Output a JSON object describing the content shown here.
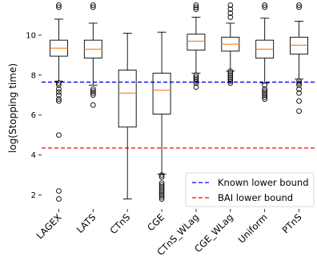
{
  "chart_data": {
    "type": "boxplot",
    "ylabel": "log(Stopping time)",
    "ylim": [
      1.3,
      11.6
    ],
    "yticks": [
      2,
      4,
      6,
      8,
      10
    ],
    "categories": [
      "LAGEX",
      "LATS",
      "CTnS",
      "CGE",
      "CTnS_WLag",
      "CGE_WLag",
      "Uniform",
      "PTnS"
    ],
    "boxes": [
      {
        "name": "LAGEX",
        "whislo": 7.7,
        "q1": 8.95,
        "med": 9.35,
        "q3": 9.75,
        "whishi": 10.8,
        "fliers": [
          7.6,
          7.5,
          7.3,
          7.15,
          7.0,
          6.8,
          6.7,
          5.0,
          2.2,
          1.8,
          11.5,
          11.4
        ]
      },
      {
        "name": "LATS",
        "whislo": 7.5,
        "q1": 8.85,
        "med": 9.3,
        "q3": 9.75,
        "whishi": 10.6,
        "fliers": [
          7.3,
          7.2,
          7.1,
          7.0,
          6.5,
          11.5,
          11.4
        ]
      },
      {
        "name": "CTnS",
        "whislo": 1.8,
        "q1": 5.4,
        "med": 7.1,
        "q3": 8.25,
        "whishi": 10.1,
        "fliers": []
      },
      {
        "name": "CGE",
        "whislo": 3.05,
        "q1": 6.05,
        "med": 7.25,
        "q3": 8.1,
        "whishi": 10.15,
        "fliers": [
          3.0,
          2.9,
          2.6,
          2.5,
          2.4,
          2.3,
          2.2,
          2.1,
          2.0,
          1.9,
          1.8
        ]
      },
      {
        "name": "CTnS_WLag",
        "whislo": 8.1,
        "q1": 9.25,
        "med": 9.7,
        "q3": 10.05,
        "whishi": 10.9,
        "fliers": [
          8.0,
          7.9,
          7.8,
          7.7,
          7.6,
          7.4,
          11.5,
          11.4,
          11.3
        ]
      },
      {
        "name": "CGE_WLag",
        "whislo": 8.2,
        "q1": 9.2,
        "med": 9.55,
        "q3": 9.9,
        "whishi": 10.6,
        "fliers": [
          8.2,
          8.1,
          8.0,
          7.9,
          7.8,
          7.7,
          7.6,
          11.5,
          11.3,
          11.1,
          10.9
        ]
      },
      {
        "name": "Uniform",
        "whislo": 7.6,
        "q1": 8.85,
        "med": 9.3,
        "q3": 9.75,
        "whishi": 10.85,
        "fliers": [
          7.5,
          7.3,
          7.2,
          7.1,
          7.0,
          6.9,
          6.8,
          11.5,
          11.4
        ]
      },
      {
        "name": "PTnS",
        "whislo": 7.8,
        "q1": 9.05,
        "med": 9.5,
        "q3": 9.9,
        "whishi": 10.7,
        "fliers": [
          7.7,
          7.6,
          7.5,
          7.3,
          7.1,
          6.7,
          6.2,
          11.5,
          11.4
        ]
      }
    ],
    "hlines": [
      {
        "name": "Known lower bound",
        "y": 7.65,
        "color": "#0000ff",
        "style": "dashed"
      },
      {
        "name": "BAI lower bound",
        "y": 4.35,
        "color": "#ff0000",
        "style": "dashed"
      }
    ],
    "legend": {
      "placement": "lower-right",
      "entries": [
        "Known lower bound",
        "BAI lower bound"
      ]
    },
    "colors": {
      "box": "#000000",
      "median": "#ff7f0e"
    }
  }
}
